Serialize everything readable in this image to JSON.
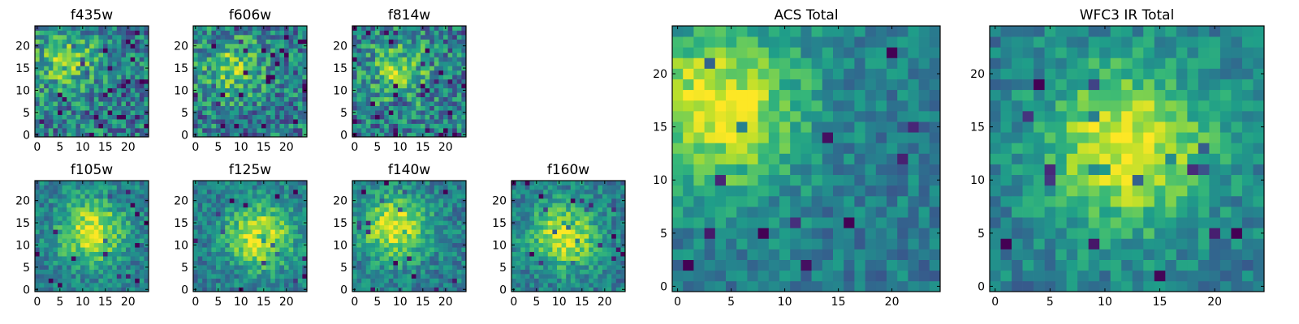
{
  "chart_data": [
    {
      "type": "heatmap",
      "title": "f435w",
      "x_ticks": [
        "0",
        "5",
        "10",
        "15",
        "20"
      ],
      "y_ticks": [
        "0",
        "5",
        "10",
        "15",
        "20"
      ],
      "xlim": [
        -0.5,
        24.5
      ],
      "ylim": [
        -0.5,
        24.5
      ],
      "colormap": "viridis",
      "grid_size": [
        25,
        25
      ],
      "hotspot": {
        "x": 6,
        "y": 17
      },
      "character": "noisy, faint source"
    },
    {
      "type": "heatmap",
      "title": "f606w",
      "x_ticks": [
        "0",
        "5",
        "10",
        "15",
        "20"
      ],
      "y_ticks": [
        "0",
        "5",
        "10",
        "15",
        "20"
      ],
      "xlim": [
        -0.5,
        24.5
      ],
      "ylim": [
        -0.5,
        24.5
      ],
      "colormap": "viridis",
      "grid_size": [
        25,
        25
      ],
      "hotspot": {
        "x": 8,
        "y": 15
      },
      "character": "noisy, diffuse source"
    },
    {
      "type": "heatmap",
      "title": "f814w",
      "x_ticks": [
        "0",
        "5",
        "10",
        "15",
        "20"
      ],
      "y_ticks": [
        "0",
        "5",
        "10",
        "15",
        "20"
      ],
      "xlim": [
        -0.5,
        24.5
      ],
      "ylim": [
        -0.5,
        24.5
      ],
      "colormap": "viridis",
      "grid_size": [
        25,
        25
      ],
      "hotspot": {
        "x": 10,
        "y": 14
      },
      "character": "noisy, diagonal ridge"
    },
    {
      "type": "heatmap",
      "title": "f105w",
      "x_ticks": [
        "0",
        "5",
        "10",
        "15",
        "20"
      ],
      "y_ticks": [
        "0",
        "5",
        "10",
        "15",
        "20"
      ],
      "xlim": [
        -0.5,
        24.5
      ],
      "ylim": [
        -0.5,
        24.5
      ],
      "colormap": "viridis",
      "grid_size": [
        25,
        25
      ],
      "hotspot": {
        "x": 12,
        "y": 13
      },
      "character": "blocky, central source"
    },
    {
      "type": "heatmap",
      "title": "f125w",
      "x_ticks": [
        "0",
        "5",
        "10",
        "15",
        "20"
      ],
      "y_ticks": [
        "0",
        "5",
        "10",
        "15",
        "20"
      ],
      "xlim": [
        -0.5,
        24.5
      ],
      "ylim": [
        -0.5,
        24.5
      ],
      "colormap": "viridis",
      "grid_size": [
        25,
        25
      ],
      "hotspot": {
        "x": 14,
        "y": 12
      },
      "character": "blocky, faint source"
    },
    {
      "type": "heatmap",
      "title": "f140w",
      "x_ticks": [
        "0",
        "5",
        "10",
        "15",
        "20"
      ],
      "y_ticks": [
        "0",
        "5",
        "10",
        "15",
        "20"
      ],
      "xlim": [
        -0.5,
        24.5
      ],
      "ylim": [
        -0.5,
        24.5
      ],
      "colormap": "viridis",
      "grid_size": [
        25,
        25
      ],
      "hotspot": {
        "x": 9,
        "y": 14
      },
      "character": "blocky, central source"
    },
    {
      "type": "heatmap",
      "title": "f160w",
      "x_ticks": [
        "0",
        "5",
        "10",
        "15",
        "20"
      ],
      "y_ticks": [
        "0",
        "5",
        "10",
        "15",
        "20"
      ],
      "xlim": [
        -0.5,
        24.5
      ],
      "ylim": [
        -0.5,
        24.5
      ],
      "colormap": "viridis",
      "grid_size": [
        25,
        25
      ],
      "hotspot": {
        "x": 11,
        "y": 12
      },
      "character": "blocky, central source"
    },
    {
      "type": "heatmap",
      "title": "ACS Total",
      "x_ticks": [
        "0",
        "5",
        "10",
        "15",
        "20"
      ],
      "y_ticks": [
        "0",
        "5",
        "10",
        "15",
        "20"
      ],
      "xlim": [
        -0.5,
        24.5
      ],
      "ylim": [
        -0.5,
        24.5
      ],
      "colormap": "viridis",
      "grid_size": [
        25,
        25
      ],
      "hotspot": {
        "x": 4,
        "y": 17
      },
      "character": "ridge from upper-left toward center"
    },
    {
      "type": "heatmap",
      "title": "WFC3 IR Total",
      "x_ticks": [
        "0",
        "5",
        "10",
        "15",
        "20"
      ],
      "y_ticks": [
        "0",
        "5",
        "10",
        "15",
        "20"
      ],
      "xlim": [
        -0.5,
        24.5
      ],
      "ylim": [
        -0.5,
        24.5
      ],
      "colormap": "viridis",
      "grid_size": [
        25,
        25
      ],
      "hotspot": {
        "x": 12,
        "y": 13
      },
      "character": "smooth central source"
    }
  ]
}
